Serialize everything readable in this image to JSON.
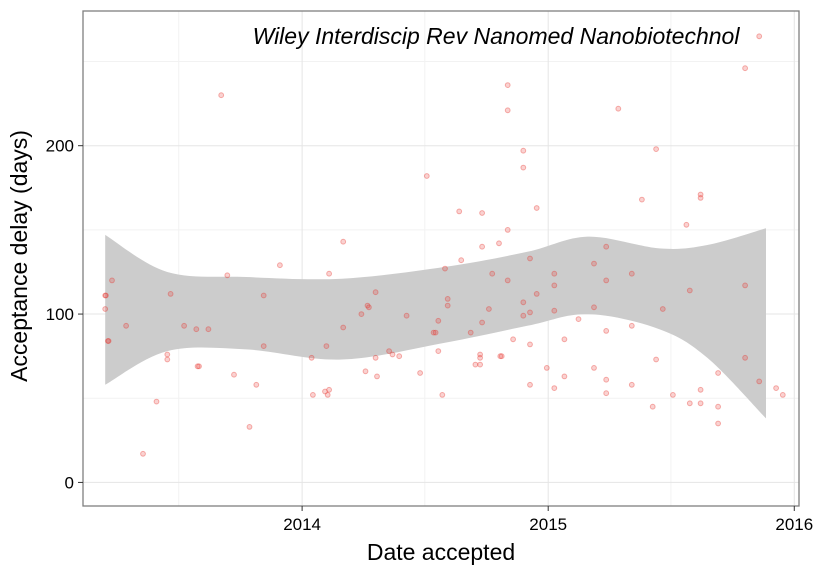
{
  "chart_data": {
    "type": "scatter",
    "title": "Wiley Interdiscip Rev Nanomed Nanobiotechnol",
    "xlabel": "Date accepted",
    "ylabel": "Acceptance delay (days)",
    "x_ticks": [
      "2014-01-01",
      "2015-01-01",
      "2016-01-01"
    ],
    "x_tick_labels": [
      "2014",
      "2015",
      "2016"
    ],
    "y_ticks": [
      0,
      100,
      200
    ],
    "xlim": [
      "2013-02-10",
      "2016-01-08"
    ],
    "ylim": [
      -14,
      280
    ],
    "grid": true,
    "point_color": "#e8342c",
    "ribbon_color": "#cccccc",
    "smooth_upper": [
      [
        "2013-03-15",
        147
      ],
      [
        "2013-06-15",
        125
      ],
      [
        "2013-10-10",
        122
      ],
      [
        "2014-03-01",
        121
      ],
      [
        "2014-08-01",
        128
      ],
      [
        "2014-12-01",
        137
      ],
      [
        "2015-03-01",
        146
      ],
      [
        "2015-06-15",
        139
      ],
      [
        "2015-08-25",
        141
      ],
      [
        "2015-11-20",
        151
      ]
    ],
    "smooth_lower": [
      [
        "2013-03-15",
        58
      ],
      [
        "2013-06-15",
        78
      ],
      [
        "2013-10-10",
        79
      ],
      [
        "2014-03-01",
        73
      ],
      [
        "2014-08-01",
        83
      ],
      [
        "2014-12-01",
        93
      ],
      [
        "2015-03-01",
        100
      ],
      [
        "2015-06-15",
        91
      ],
      [
        "2015-08-25",
        74
      ],
      [
        "2015-11-20",
        38
      ]
    ],
    "points": [
      [
        "2013-03-15",
        111
      ],
      [
        "2013-03-16",
        111
      ],
      [
        "2013-03-15",
        103
      ],
      [
        "2013-03-19",
        84
      ],
      [
        "2013-03-20",
        84
      ],
      [
        "2013-03-25",
        120
      ],
      [
        "2013-04-15",
        93
      ],
      [
        "2013-05-10",
        17
      ],
      [
        "2013-05-30",
        48
      ],
      [
        "2013-06-15",
        76
      ],
      [
        "2013-06-15",
        73
      ],
      [
        "2013-06-20",
        112
      ],
      [
        "2013-07-10",
        93
      ],
      [
        "2013-07-28",
        91
      ],
      [
        "2013-07-30",
        69
      ],
      [
        "2013-08-01",
        69
      ],
      [
        "2013-08-15",
        91
      ],
      [
        "2013-09-03",
        230
      ],
      [
        "2013-09-12",
        123
      ],
      [
        "2013-09-22",
        64
      ],
      [
        "2013-10-15",
        33
      ],
      [
        "2013-10-25",
        58
      ],
      [
        "2013-11-05",
        81
      ],
      [
        "2013-11-05",
        111
      ],
      [
        "2013-11-29",
        129
      ],
      [
        "2014-01-15",
        74
      ],
      [
        "2014-01-17",
        52
      ],
      [
        "2014-02-04",
        54
      ],
      [
        "2014-02-06",
        81
      ],
      [
        "2014-02-08",
        52
      ],
      [
        "2014-02-10",
        55
      ],
      [
        "2014-02-10",
        124
      ],
      [
        "2014-03-03",
        92
      ],
      [
        "2014-03-03",
        143
      ],
      [
        "2014-03-30",
        100
      ],
      [
        "2014-04-05",
        66
      ],
      [
        "2014-04-08",
        105
      ],
      [
        "2014-04-10",
        104
      ],
      [
        "2014-04-20",
        113
      ],
      [
        "2014-04-20",
        74
      ],
      [
        "2014-04-22",
        63
      ],
      [
        "2014-05-10",
        78
      ],
      [
        "2014-05-15",
        76
      ],
      [
        "2014-05-25",
        75
      ],
      [
        "2014-06-05",
        99
      ],
      [
        "2014-06-25",
        65
      ],
      [
        "2014-07-05",
        182
      ],
      [
        "2014-07-15",
        89
      ],
      [
        "2014-07-18",
        89
      ],
      [
        "2014-07-22",
        78
      ],
      [
        "2014-07-22",
        96
      ],
      [
        "2014-07-28",
        52
      ],
      [
        "2014-08-01",
        127
      ],
      [
        "2014-08-05",
        109
      ],
      [
        "2014-08-05",
        105
      ],
      [
        "2014-08-22",
        161
      ],
      [
        "2014-08-25",
        132
      ],
      [
        "2014-09-08",
        89
      ],
      [
        "2014-09-15",
        70
      ],
      [
        "2014-09-22",
        76
      ],
      [
        "2014-09-22",
        74
      ],
      [
        "2014-09-22",
        70
      ],
      [
        "2014-09-25",
        160
      ],
      [
        "2014-09-25",
        140
      ],
      [
        "2014-09-25",
        95
      ],
      [
        "2014-10-05",
        103
      ],
      [
        "2014-10-10",
        124
      ],
      [
        "2014-10-20",
        142
      ],
      [
        "2014-10-22",
        75
      ],
      [
        "2014-10-24",
        75
      ],
      [
        "2014-11-02",
        236
      ],
      [
        "2014-11-02",
        221
      ],
      [
        "2014-11-02",
        150
      ],
      [
        "2014-11-02",
        120
      ],
      [
        "2014-11-10",
        85
      ],
      [
        "2014-11-25",
        197
      ],
      [
        "2014-11-25",
        187
      ],
      [
        "2014-11-25",
        107
      ],
      [
        "2014-11-25",
        99
      ],
      [
        "2014-12-05",
        133
      ],
      [
        "2014-12-05",
        101
      ],
      [
        "2014-12-05",
        82
      ],
      [
        "2014-12-05",
        58
      ],
      [
        "2014-12-15",
        112
      ],
      [
        "2014-12-15",
        163
      ],
      [
        "2014-12-30",
        68
      ],
      [
        "2015-01-10",
        124
      ],
      [
        "2015-01-10",
        117
      ],
      [
        "2015-01-10",
        102
      ],
      [
        "2015-01-10",
        56
      ],
      [
        "2015-01-25",
        85
      ],
      [
        "2015-01-25",
        63
      ],
      [
        "2015-02-15",
        97
      ],
      [
        "2015-03-10",
        130
      ],
      [
        "2015-03-10",
        104
      ],
      [
        "2015-03-10",
        68
      ],
      [
        "2015-03-28",
        140
      ],
      [
        "2015-03-28",
        120
      ],
      [
        "2015-03-28",
        90
      ],
      [
        "2015-03-28",
        61
      ],
      [
        "2015-03-28",
        53
      ],
      [
        "2015-04-15",
        222
      ],
      [
        "2015-05-05",
        124
      ],
      [
        "2015-05-05",
        93
      ],
      [
        "2015-05-05",
        58
      ],
      [
        "2015-05-20",
        168
      ],
      [
        "2015-06-05",
        45
      ],
      [
        "2015-06-10",
        198
      ],
      [
        "2015-06-10",
        73
      ],
      [
        "2015-06-20",
        103
      ],
      [
        "2015-07-05",
        52
      ],
      [
        "2015-07-25",
        153
      ],
      [
        "2015-07-30",
        114
      ],
      [
        "2015-07-30",
        47
      ],
      [
        "2015-08-15",
        171
      ],
      [
        "2015-08-15",
        169
      ],
      [
        "2015-08-15",
        55
      ],
      [
        "2015-08-15",
        47
      ],
      [
        "2015-09-10",
        65
      ],
      [
        "2015-09-10",
        45
      ],
      [
        "2015-09-10",
        35
      ],
      [
        "2015-10-20",
        246
      ],
      [
        "2015-10-20",
        117
      ],
      [
        "2015-10-20",
        74
      ],
      [
        "2015-11-10",
        265
      ],
      [
        "2015-11-10",
        60
      ],
      [
        "2015-12-05",
        56
      ],
      [
        "2015-12-15",
        52
      ]
    ]
  }
}
